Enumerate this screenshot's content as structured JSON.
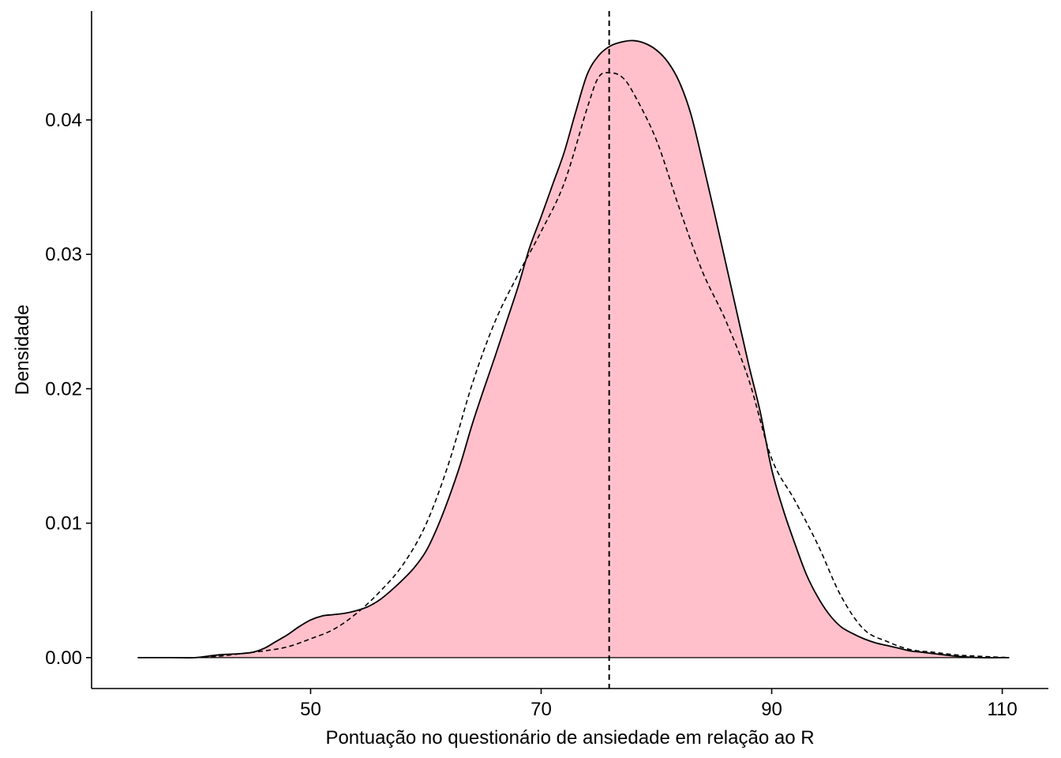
{
  "chart_data": {
    "type": "area",
    "title": "",
    "xlabel": "Pontuação no questionário de ansiedade em relação ao R",
    "ylabel": "Densidade",
    "xlim": [
      31,
      114
    ],
    "ylim": [
      -0.0023,
      0.0481
    ],
    "x_ticks": [
      50,
      70,
      90,
      110
    ],
    "x_tick_labels": [
      "50",
      "70",
      "90",
      "110"
    ],
    "y_ticks": [
      0.0,
      0.01,
      0.02,
      0.03,
      0.04
    ],
    "y_tick_labels": [
      "0.00",
      "0.01",
      "0.02",
      "0.03",
      "0.04"
    ],
    "grid": false,
    "legend": "none",
    "vline_x": 75.9,
    "series": [
      {
        "role": "observed density (filled, solid outline)",
        "fill": "#FFC0CB",
        "stroke": "#000000",
        "x": [
          35,
          38,
          40,
          42,
          44,
          45,
          46,
          47,
          48,
          49,
          50,
          51,
          52,
          53,
          54,
          55,
          56,
          57,
          58,
          59,
          60,
          61,
          62,
          63,
          64,
          65,
          66,
          67,
          68,
          69,
          70,
          71,
          72,
          73,
          74,
          75,
          76,
          77,
          78,
          79,
          80,
          81,
          82,
          83,
          84,
          85,
          86,
          87,
          88,
          89,
          90,
          91,
          92,
          93,
          94,
          95,
          96,
          97,
          98,
          99,
          100,
          101,
          102,
          103,
          104,
          105,
          106,
          108,
          110.6
        ],
        "y": [
          0.0,
          0.0,
          0.0,
          0.0002,
          0.0003,
          0.0004,
          0.0007,
          0.0012,
          0.0017,
          0.0023,
          0.0028,
          0.0031,
          0.0032,
          0.0033,
          0.0035,
          0.0038,
          0.0043,
          0.005,
          0.0058,
          0.0067,
          0.0079,
          0.0097,
          0.0119,
          0.0144,
          0.0173,
          0.0199,
          0.0224,
          0.025,
          0.0276,
          0.0305,
          0.0328,
          0.0352,
          0.0376,
          0.0406,
          0.0434,
          0.0448,
          0.0455,
          0.0458,
          0.0459,
          0.0457,
          0.0452,
          0.0443,
          0.0428,
          0.0404,
          0.0369,
          0.0332,
          0.0294,
          0.0256,
          0.0218,
          0.0183,
          0.014,
          0.011,
          0.0085,
          0.0062,
          0.0045,
          0.0032,
          0.0023,
          0.0018,
          0.0014,
          0.0011,
          0.0009,
          0.0007,
          0.0005,
          0.0004,
          0.0003,
          0.0002,
          0.0001,
          0.0,
          0.0
        ]
      },
      {
        "role": "normal reference density (dashed)",
        "stroke": "#000000",
        "dash": true,
        "x": [
          40,
          42,
          44,
          46,
          48,
          50,
          52,
          54,
          56,
          58,
          60,
          62,
          64,
          66,
          68,
          70,
          72,
          74,
          75,
          76,
          77,
          78,
          80,
          82,
          84,
          86,
          88,
          90,
          92,
          94,
          96,
          98,
          100,
          102,
          104,
          106,
          108,
          110.6
        ],
        "y": [
          0.0,
          0.0001,
          0.0003,
          0.0005,
          0.0008,
          0.0014,
          0.0021,
          0.0033,
          0.0049,
          0.0069,
          0.0099,
          0.0145,
          0.0203,
          0.025,
          0.0285,
          0.0317,
          0.0353,
          0.0409,
          0.0432,
          0.0435,
          0.0432,
          0.042,
          0.0385,
          0.0334,
          0.0287,
          0.0251,
          0.0207,
          0.0148,
          0.0117,
          0.0084,
          0.0046,
          0.0021,
          0.0012,
          0.0006,
          0.0004,
          0.0002,
          0.0001,
          0.0
        ]
      }
    ]
  }
}
